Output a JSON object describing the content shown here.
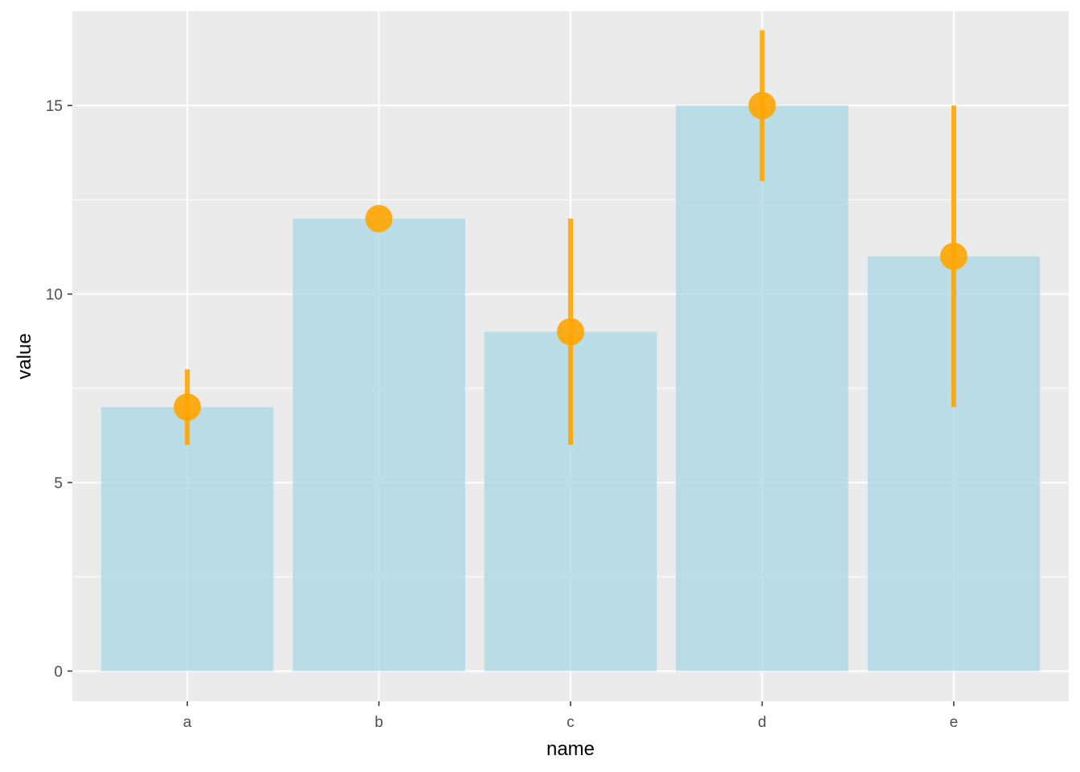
{
  "chart_data": {
    "type": "bar",
    "categories": [
      "a",
      "b",
      "c",
      "d",
      "e"
    ],
    "values": [
      7,
      12,
      9,
      15,
      11
    ],
    "error_low": [
      6,
      12,
      6,
      13,
      7
    ],
    "error_high": [
      8,
      12,
      12,
      17,
      15
    ],
    "xlabel": "name",
    "ylabel": "value",
    "ylim": [
      -0.8,
      17.5
    ],
    "yticks": [
      0,
      5,
      10,
      15
    ],
    "ytick_labels": [
      "0",
      "5",
      "10",
      "15"
    ],
    "grid": true,
    "colors": {
      "bar": "#add8e6",
      "point": "#ffa500",
      "panel": "#ebebeb",
      "gridline": "#ffffff"
    }
  }
}
